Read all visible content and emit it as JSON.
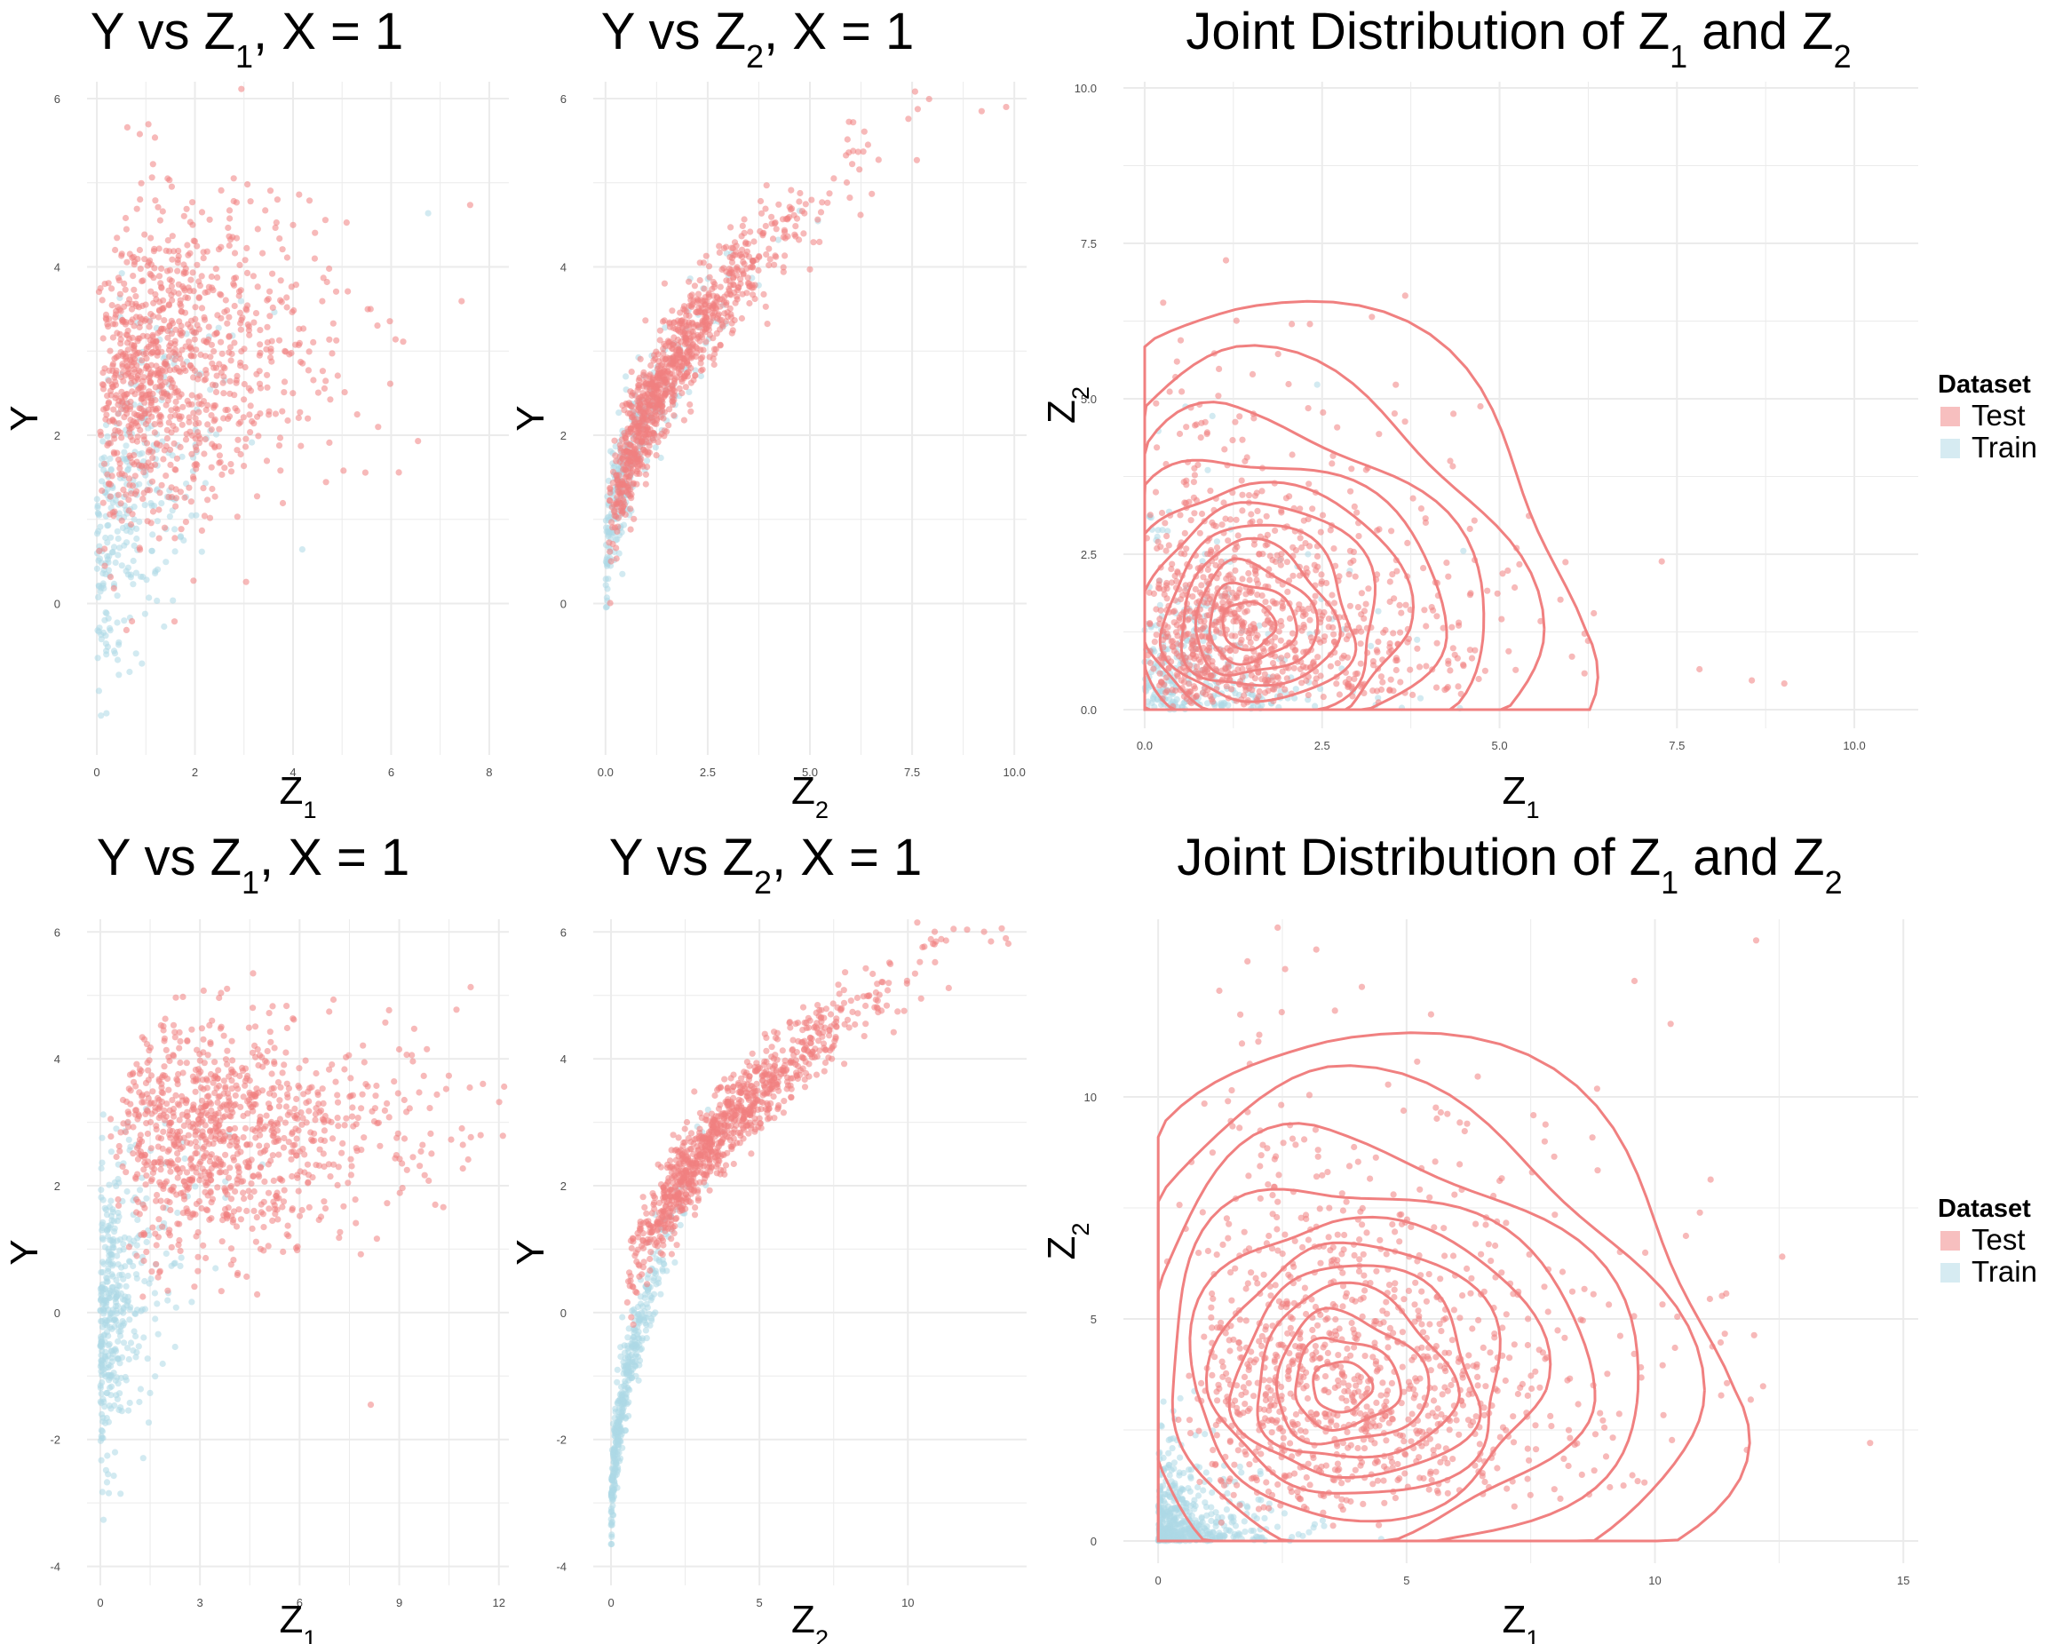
{
  "colors": {
    "test": "#F08080",
    "train": "#ADD8E6",
    "grid": "#EBEBEB",
    "tick": "#4D4D4D",
    "text": "#000000"
  },
  "legend": {
    "title": "Dataset",
    "items": [
      {
        "key": "test",
        "label": "Test"
      },
      {
        "key": "train",
        "label": "Train"
      }
    ]
  },
  "chart_data": [
    {
      "id": "top-y-vs-z1",
      "type": "scatter",
      "title": {
        "main": "Y vs Z",
        "sub": "1",
        "rest": ", X = 1"
      },
      "xlabel": {
        "main": "Z",
        "sub": "1"
      },
      "ylabel": {
        "main": "Y"
      },
      "xlim": [
        -0.2,
        8.4
      ],
      "ylim": [
        -1.8,
        6.2
      ],
      "xticks": [
        0,
        2,
        4,
        6,
        8
      ],
      "yticks": [
        0,
        2,
        4,
        6
      ],
      "series": [
        {
          "name": "Train",
          "key": "train",
          "n": 300,
          "x_dist": {
            "shape": 1.1,
            "scale": 0.8
          },
          "y_model": {
            "a": 0.4,
            "b": 1.4,
            "noise": 0.9
          }
        },
        {
          "name": "Test",
          "key": "test",
          "n": 1000,
          "x_dist": {
            "shape": 2.0,
            "scale": 0.85
          },
          "y_model": {
            "a": 2.4,
            "b": 0.4,
            "noise": 0.9
          }
        }
      ]
    },
    {
      "id": "top-y-vs-z2",
      "type": "scatter",
      "title": {
        "main": "Y vs Z",
        "sub": "2",
        "rest": ", X = 1"
      },
      "xlabel": {
        "main": "Z",
        "sub": "2"
      },
      "ylabel": {
        "main": "Y"
      },
      "xlim": [
        -0.3,
        10.3
      ],
      "ylim": [
        -1.8,
        6.2
      ],
      "xticks": [
        0.0,
        2.5,
        5.0,
        7.5,
        10.0
      ],
      "xtick_labels": [
        "0.0",
        "2.5",
        "5.0",
        "7.5",
        "10.0"
      ],
      "yticks": [
        0,
        2,
        4,
        6
      ],
      "series": [
        {
          "name": "Train",
          "key": "train",
          "n": 300,
          "x_dist": {
            "shape": 1.1,
            "scale": 0.8
          },
          "y_model": {
            "type": "sqrt",
            "a": 0.25,
            "b": 2.0,
            "noise": 0.35
          }
        },
        {
          "name": "Test",
          "key": "test",
          "n": 1000,
          "x_dist": {
            "shape": 2.0,
            "scale": 0.9
          },
          "y_model": {
            "type": "sqrt",
            "a": 0.25,
            "b": 2.0,
            "noise": 0.3
          }
        }
      ],
      "extra_points": [
        {
          "x": 9.2,
          "y": 5.85,
          "key": "test"
        },
        {
          "x": 9.8,
          "y": 5.9,
          "key": "test"
        }
      ]
    },
    {
      "id": "top-joint",
      "type": "scatter+contour",
      "title": {
        "main": "Joint Distribution of  Z",
        "sub": "1",
        "rest": "  and  Z",
        "sub2": "2"
      },
      "xlabel": {
        "main": "Z",
        "sub": "1"
      },
      "ylabel": {
        "main": "Z",
        "sub": "2"
      },
      "xlim": [
        -0.3,
        10.9
      ],
      "ylim": [
        -0.3,
        10.1
      ],
      "xticks": [
        0.0,
        2.5,
        5.0,
        7.5,
        10.0
      ],
      "xtick_labels": [
        "0.0",
        "2.5",
        "5.0",
        "7.5",
        "10.0"
      ],
      "yticks": [
        0.0,
        2.5,
        5.0,
        7.5,
        10.0
      ],
      "ytick_labels": [
        "0.0",
        "2.5",
        "5.0",
        "7.5",
        "10.0"
      ],
      "series": [
        {
          "name": "Train",
          "key": "train",
          "n": 300,
          "x_dist": {
            "shape": 1.1,
            "scale": 0.8
          },
          "z2_dist": {
            "shape": 1.1,
            "scale": 0.8
          }
        },
        {
          "name": "Test",
          "key": "test",
          "n": 1000,
          "x_dist": {
            "shape": 2.0,
            "scale": 0.85
          },
          "z2_dist": {
            "shape": 2.0,
            "scale": 0.85
          }
        }
      ],
      "contour": {
        "center": [
          1.4,
          1.3
        ],
        "radii": [
          0.3,
          0.5,
          0.7,
          0.9,
          1.1,
          1.35,
          1.6,
          1.9,
          2.3,
          2.8,
          3.4
        ],
        "stretch": [
          1.25,
          1.25
        ]
      }
    },
    {
      "id": "bottom-y-vs-z1",
      "type": "scatter",
      "title": {
        "main": "Y vs Z",
        "sub": "1",
        "rest": ", X = 1"
      },
      "xlabel": {
        "main": "Z",
        "sub": "1"
      },
      "ylabel": {
        "main": "Y"
      },
      "xlim": [
        -0.4,
        12.3
      ],
      "ylim": [
        -4.3,
        6.2
      ],
      "xticks": [
        0,
        3,
        6,
        9,
        12
      ],
      "yticks": [
        -4,
        -2,
        0,
        2,
        4,
        6
      ],
      "series": [
        {
          "name": "Train",
          "key": "train",
          "n": 400,
          "x_dist": {
            "shape": 1.0,
            "scale": 0.6
          },
          "y_model": {
            "a": -0.3,
            "b": 1.2,
            "noise": 1.1
          }
        },
        {
          "name": "Test",
          "key": "test",
          "n": 1000,
          "x_dist": {
            "shape": 3.5,
            "scale": 1.2
          },
          "y_model": {
            "a": 2.6,
            "b": 0.12,
            "noise": 0.9
          }
        }
      ]
    },
    {
      "id": "bottom-y-vs-z2",
      "type": "scatter",
      "title": {
        "main": "Y vs Z",
        "sub": "2",
        "rest": ", X = 1"
      },
      "xlabel": {
        "main": "Z",
        "sub": "2"
      },
      "ylabel": {
        "main": "Y"
      },
      "xlim": [
        -0.6,
        14.0
      ],
      "ylim": [
        -4.3,
        6.2
      ],
      "xticks": [
        0,
        5,
        10
      ],
      "yticks": [
        -4,
        -2,
        0,
        2,
        4,
        6
      ],
      "series": [
        {
          "name": "Train",
          "key": "train",
          "n": 400,
          "x_dist": {
            "shape": 1.0,
            "scale": 0.6
          },
          "y_model": {
            "type": "sqrt",
            "a": -3.5,
            "b": 3.4,
            "noise": 0.35
          }
        },
        {
          "name": "Test",
          "key": "test",
          "n": 1000,
          "x_dist": {
            "shape": 3.5,
            "scale": 1.2
          },
          "y_model": {
            "type": "sqrt",
            "a": -1.0,
            "b": 2.0,
            "noise": 0.3
          }
        }
      ],
      "extra_points": [
        {
          "x": 12.8,
          "y": 5.85,
          "key": "test"
        },
        {
          "x": 13.3,
          "y": 5.9,
          "key": "test"
        }
      ]
    },
    {
      "id": "bottom-joint",
      "type": "scatter+contour",
      "title": {
        "main": "Joint Distribution of  Z",
        "sub": "1",
        "rest": "  and  Z",
        "sub2": "2"
      },
      "xlabel": {
        "main": "Z",
        "sub": "1"
      },
      "ylabel": {
        "main": "Z",
        "sub": "2"
      },
      "xlim": [
        -0.7,
        15.3
      ],
      "ylim": [
        -0.5,
        14.0
      ],
      "xticks": [
        0,
        5,
        10,
        15
      ],
      "yticks": [
        0,
        5,
        10
      ],
      "series": [
        {
          "name": "Train",
          "key": "train",
          "n": 500,
          "x_dist": {
            "shape": 1.0,
            "scale": 0.6
          },
          "z2_dist": {
            "shape": 1.0,
            "scale": 0.6
          }
        },
        {
          "name": "Test",
          "key": "test",
          "n": 1100,
          "x_dist": {
            "shape": 3.5,
            "scale": 1.2
          },
          "z2_dist": {
            "shape": 3.5,
            "scale": 1.2
          }
        }
      ],
      "contour": {
        "center": [
          3.6,
          3.4
        ],
        "radii": [
          0.5,
          0.9,
          1.3,
          1.7,
          2.1,
          2.5,
          3.0,
          3.6,
          4.3,
          5.1,
          5.9
        ],
        "stretch": [
          1.2,
          1.1
        ]
      }
    }
  ]
}
